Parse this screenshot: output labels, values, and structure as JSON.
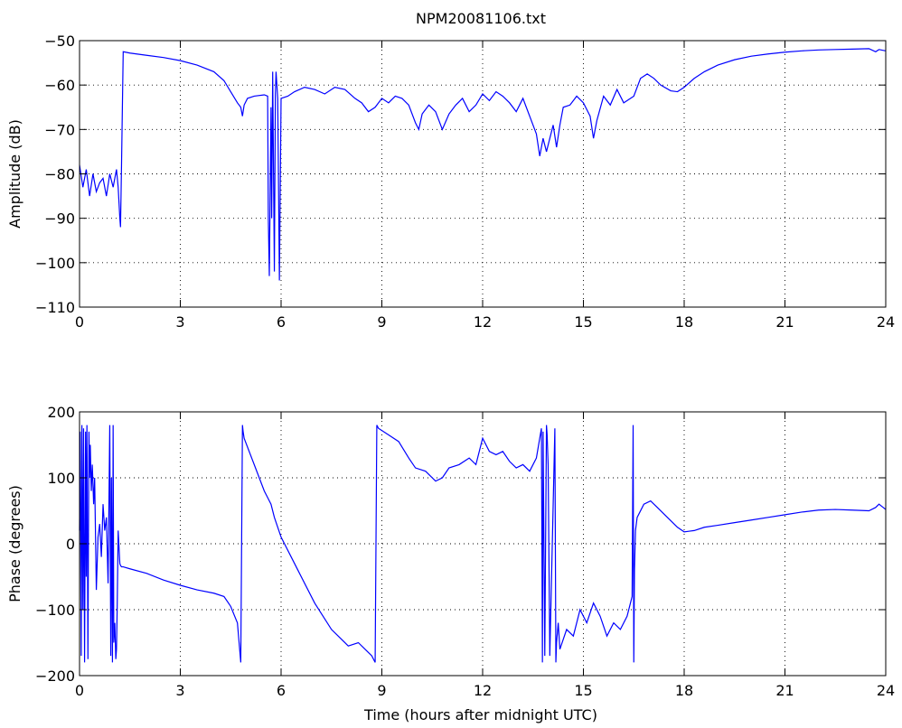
{
  "figure": {
    "title": "NPM20081106.txt",
    "xlabel": "Time (hours after midnight UTC)"
  },
  "chart_data": [
    {
      "type": "line",
      "title": "NPM20081106.txt",
      "xlabel": "",
      "ylabel": "Amplitude (dB)",
      "xlim": [
        0,
        24
      ],
      "ylim": [
        -110,
        -50
      ],
      "xticks": [
        0,
        3,
        6,
        9,
        12,
        15,
        18,
        21,
        24
      ],
      "yticks": [
        -50,
        -60,
        -70,
        -80,
        -90,
        -100,
        -110
      ],
      "grid": true,
      "color": "#0000ff",
      "series": [
        {
          "x": [
            0,
            0.1,
            0.2,
            0.3,
            0.4,
            0.5,
            0.6,
            0.7,
            0.8,
            0.9,
            1.0,
            1.1,
            1.15,
            1.2,
            1.22,
            1.25,
            1.3,
            1.5,
            2.0,
            2.5,
            3.0,
            3.5,
            4.0,
            4.3,
            4.5,
            4.7,
            4.8,
            4.85,
            4.9,
            5.0,
            5.2,
            5.5,
            5.6,
            5.62,
            5.65,
            5.7,
            5.72,
            5.75,
            5.8,
            5.83,
            5.85,
            5.9,
            5.95,
            6.0,
            6.2,
            6.4,
            6.7,
            7.0,
            7.3,
            7.6,
            7.9,
            8.2,
            8.4,
            8.6,
            8.8,
            9.0,
            9.2,
            9.4,
            9.6,
            9.8,
            10.0,
            10.1,
            10.2,
            10.4,
            10.6,
            10.8,
            11.0,
            11.2,
            11.4,
            11.6,
            11.8,
            12.0,
            12.2,
            12.4,
            12.6,
            12.8,
            13.0,
            13.2,
            13.4,
            13.6,
            13.7,
            13.8,
            13.9,
            14.0,
            14.1,
            14.2,
            14.3,
            14.4,
            14.6,
            14.8,
            15.0,
            15.2,
            15.3,
            15.4,
            15.6,
            15.8,
            16.0,
            16.2,
            16.5,
            16.7,
            16.9,
            17.1,
            17.3,
            17.6,
            17.8,
            18.0,
            18.3,
            18.6,
            19.0,
            19.5,
            20.0,
            20.5,
            21.0,
            21.5,
            22.0,
            22.5,
            23.0,
            23.5,
            23.7,
            23.8,
            24.0
          ],
          "y": [
            -78,
            -83,
            -79,
            -85,
            -80,
            -84,
            -82,
            -81,
            -85,
            -80,
            -83,
            -79,
            -83,
            -90,
            -92,
            -78,
            -52.5,
            -52.8,
            -53.3,
            -53.8,
            -54.5,
            -55.5,
            -57,
            -59,
            -61.5,
            -64,
            -65,
            -67,
            -64.5,
            -63,
            -62.5,
            -62.2,
            -62.5,
            -90,
            -103,
            -65,
            -90,
            -57,
            -102,
            -62,
            -57,
            -63,
            -104,
            -63,
            -62.5,
            -61.5,
            -60.5,
            -61,
            -62,
            -60.5,
            -61,
            -63,
            -64,
            -66,
            -65,
            -63,
            -64,
            -62.5,
            -63,
            -64.5,
            -68.5,
            -70,
            -66.5,
            -64.5,
            -66,
            -70,
            -66.5,
            -64.5,
            -63,
            -66,
            -64.5,
            -62,
            -63.5,
            -61.5,
            -62.5,
            -64,
            -66,
            -63,
            -67,
            -71,
            -76,
            -72,
            -75,
            -72,
            -69,
            -74,
            -69,
            -65,
            -64.5,
            -62.5,
            -64,
            -67,
            -72,
            -68,
            -62.5,
            -64.5,
            -61,
            -64,
            -62.5,
            -58.5,
            -57.5,
            -58.5,
            -60,
            -61.3,
            -61.5,
            -60.5,
            -58.5,
            -57,
            -55.5,
            -54.3,
            -53.5,
            -53,
            -52.6,
            -52.3,
            -52.1,
            -52,
            -51.9,
            -51.8,
            -52.5,
            -52,
            -52.3
          ]
        }
      ]
    },
    {
      "type": "line",
      "title": "",
      "xlabel": "Time (hours after midnight UTC)",
      "ylabel": "Phase (degrees)",
      "xlim": [
        0,
        24
      ],
      "ylim": [
        -200,
        200
      ],
      "xticks": [
        0,
        3,
        6,
        9,
        12,
        15,
        18,
        21,
        24
      ],
      "yticks": [
        200,
        100,
        0,
        -100,
        -200
      ],
      "grid": true,
      "color": "#0000ff",
      "series": [
        {
          "x": [
            0,
            0.02,
            0.05,
            0.07,
            0.1,
            0.12,
            0.15,
            0.18,
            0.2,
            0.22,
            0.25,
            0.28,
            0.3,
            0.32,
            0.35,
            0.38,
            0.4,
            0.42,
            0.45,
            0.5,
            0.55,
            0.6,
            0.65,
            0.7,
            0.75,
            0.8,
            0.85,
            0.9,
            0.93,
            0.95,
            0.98,
            1.0,
            1.02,
            1.05,
            1.08,
            1.1,
            1.12,
            1.15,
            1.2,
            1.22,
            1.25,
            1.3,
            1.5,
            2.0,
            2.5,
            3.0,
            3.5,
            4.0,
            4.3,
            4.5,
            4.7,
            4.8,
            4.85,
            4.87,
            4.9,
            5.2,
            5.5,
            5.6,
            5.7,
            5.8,
            6.0,
            6.5,
            7.0,
            7.5,
            8.0,
            8.3,
            8.5,
            8.7,
            8.8,
            8.85,
            8.9,
            9.2,
            9.5,
            9.8,
            10.0,
            10.3,
            10.6,
            10.8,
            11.0,
            11.3,
            11.6,
            11.8,
            12.0,
            12.2,
            12.4,
            12.6,
            12.8,
            13.0,
            13.2,
            13.4,
            13.6,
            13.75,
            13.78,
            13.8,
            13.85,
            13.9,
            13.92,
            13.95,
            14.0,
            14.15,
            14.18,
            14.2,
            14.25,
            14.3,
            14.5,
            14.7,
            14.9,
            15.1,
            15.3,
            15.5,
            15.7,
            15.9,
            16.1,
            16.3,
            16.45,
            16.48,
            16.5,
            16.52,
            16.55,
            16.6,
            16.8,
            17.0,
            17.2,
            17.5,
            17.8,
            18.0,
            18.3,
            18.6,
            19.0,
            19.5,
            20.0,
            20.5,
            21.0,
            21.5,
            22.0,
            22.5,
            23.0,
            23.5,
            23.7,
            23.8,
            24.0
          ],
          "y": [
            20,
            170,
            -170,
            180,
            -100,
            175,
            -180,
            170,
            -50,
            180,
            -175,
            170,
            100,
            150,
            80,
            120,
            90,
            60,
            100,
            -70,
            10,
            30,
            -20,
            60,
            20,
            40,
            -60,
            180,
            -170,
            100,
            -180,
            180,
            -150,
            -120,
            -175,
            -160,
            -100,
            20,
            -30,
            -33,
            -35,
            -35,
            -38,
            -45,
            -55,
            -63,
            -70,
            -75,
            -80,
            -95,
            -120,
            -180,
            180,
            170,
            160,
            120,
            80,
            70,
            60,
            40,
            10,
            -40,
            -90,
            -130,
            -155,
            -150,
            -160,
            -170,
            -180,
            180,
            175,
            165,
            155,
            130,
            115,
            110,
            95,
            100,
            115,
            120,
            130,
            120,
            160,
            140,
            135,
            140,
            125,
            115,
            120,
            110,
            130,
            175,
            -180,
            170,
            -170,
            180,
            165,
            120,
            -170,
            175,
            -180,
            -150,
            -120,
            -160,
            -130,
            -140,
            -100,
            -120,
            -90,
            -110,
            -140,
            -120,
            -130,
            -110,
            -80,
            180,
            -180,
            -40,
            20,
            40,
            60,
            65,
            55,
            40,
            25,
            18,
            20,
            25,
            28,
            32,
            36,
            40,
            44,
            48,
            51,
            52,
            51,
            50,
            55,
            60,
            52
          ]
        }
      ]
    }
  ]
}
